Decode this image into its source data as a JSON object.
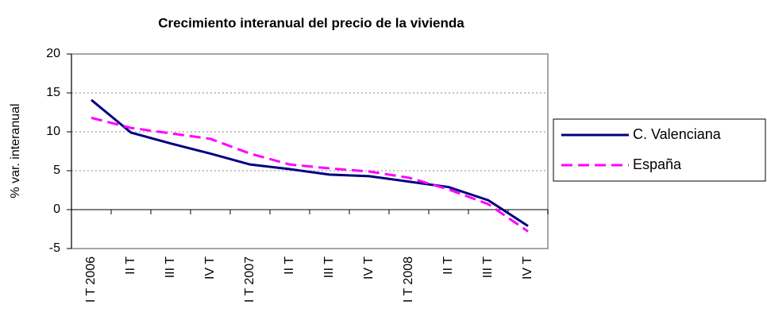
{
  "chart_data": {
    "type": "line",
    "title": "Crecimiento interanual del precio de la vivienda",
    "y_label": "% var. interanual",
    "categories": [
      "I T 2006",
      "II T",
      "III T",
      "IV T",
      "I T 2007",
      "II T",
      "III T",
      "IV T",
      "I T 2008",
      "II T",
      "III T",
      "IV T"
    ],
    "series": [
      {
        "name": "C. Valenciana",
        "color": "#000080",
        "dash": "solid",
        "values": [
          14.1,
          9.9,
          8.5,
          7.2,
          5.8,
          5.2,
          4.5,
          4.3,
          3.6,
          2.9,
          1.2,
          -2.1
        ]
      },
      {
        "name": "España",
        "color": "#ff00ff",
        "dash": "dashed",
        "values": [
          11.8,
          10.5,
          9.8,
          9.1,
          7.2,
          5.8,
          5.3,
          4.9,
          4.1,
          2.6,
          0.7,
          -2.8
        ]
      }
    ],
    "ylim": [
      -5,
      20
    ],
    "yticks": [
      -5,
      0,
      5,
      10,
      15,
      20
    ],
    "grid": true,
    "legend": "right"
  }
}
